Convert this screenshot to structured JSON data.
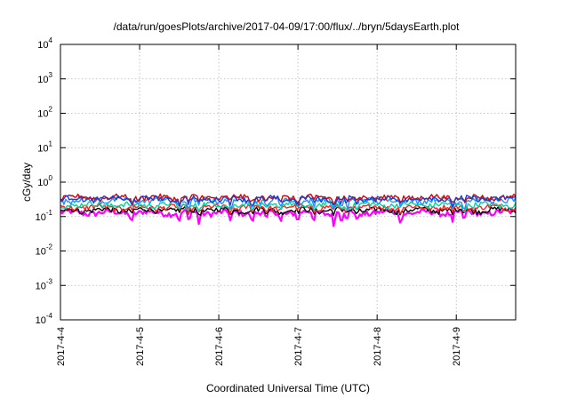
{
  "chart_data": {
    "type": "line",
    "title": "/data/run/goesPlots/archive/2017-04-09/17:00/flux/../bryn/5daysEarth.plot",
    "xlabel": "Coordinated Universal Time (UTC)",
    "ylabel": "cGy/day",
    "y_scale": "log",
    "y_ticks": [
      {
        "base": "10",
        "exp": "-4",
        "value": 0.0001
      },
      {
        "base": "10",
        "exp": "-3",
        "value": 0.001
      },
      {
        "base": "10",
        "exp": "-2",
        "value": 0.01
      },
      {
        "base": "10",
        "exp": "-1",
        "value": 0.1
      },
      {
        "base": "10",
        "exp": "0",
        "value": 1
      },
      {
        "base": "10",
        "exp": "1",
        "value": 10
      },
      {
        "base": "10",
        "exp": "2",
        "value": 100
      },
      {
        "base": "10",
        "exp": "3",
        "value": 1000
      },
      {
        "base": "10",
        "exp": "4",
        "value": 10000
      }
    ],
    "ylim": [
      0.0001,
      10000
    ],
    "x_ticks": [
      "2017-4-4",
      "2017-4-5",
      "2017-4-6",
      "2017-4-7",
      "2017-4-8",
      "2017-4-9"
    ],
    "xlim_days": [
      0,
      5.75
    ],
    "grid": true,
    "legend": "none",
    "series": [
      {
        "color": "#ff00ff",
        "base": 0.13,
        "dip_depth": 0.55
      },
      {
        "color": "#000000",
        "base": 0.155,
        "dip_depth": 0.2
      },
      {
        "color": "#ff2020",
        "base": 0.185,
        "dip_depth": 0.25
      },
      {
        "color": "#00d4a0",
        "base": 0.22,
        "dip_depth": 0.3
      },
      {
        "color": "#1e90ff",
        "base": 0.3,
        "dip_depth": 0.45
      },
      {
        "color": "#e00000",
        "base": 0.36,
        "dip_depth": 0.3
      },
      {
        "color": "#1c3fd0",
        "base": 0.33,
        "dip_depth": 0.35
      }
    ],
    "dips_days": [
      0.9,
      1.5,
      1.62,
      1.75,
      2.15,
      2.42,
      2.6,
      2.78,
      3.0,
      3.2,
      3.45,
      3.55,
      3.62,
      3.75,
      4.3,
      4.95,
      5.1
    ]
  }
}
